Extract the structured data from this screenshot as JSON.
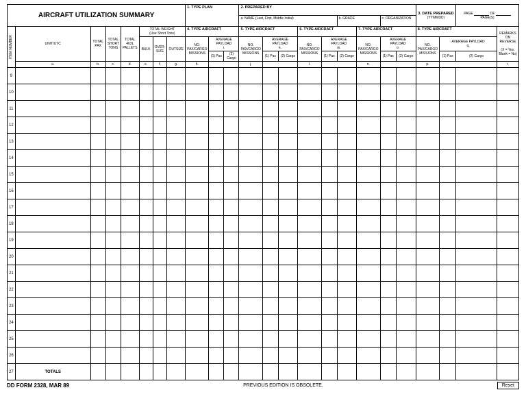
{
  "title": "AIRCRAFT UTILIZATION SUMMARY",
  "top": {
    "type_plan": "1. TYPE PLAN",
    "prepared_by": "2. PREPARED BY",
    "name": "a. NAME (Last, First, Middle Initial)",
    "grade": "b. GRADE",
    "org": "c. ORGANIZATION",
    "date_prepared": "3. DATE PREPARED",
    "date_fmt": "(YYMMDD)",
    "page": "PAGE",
    "of": "OF",
    "pages": "PAGE(S)"
  },
  "cols": {
    "item_number": "ITEM NUMBER",
    "unit_utc": "UNIT/UTC",
    "unit_utc_sub": "a.",
    "total_pax": "TOTAL PAX",
    "total_pax_sub": "b.",
    "total_short_tons": "TOTAL SHORT TONS",
    "total_short_tons_sub": "c.",
    "total_pallets": "TOTAL 463L PALLETS",
    "total_pallets_sub": "d.",
    "total_weight": "TOTAL WEIGHT",
    "total_weight_note": "(Use Short Tons)",
    "bulk": "BULK",
    "bulk_sub": "e.",
    "oversize": "OVER-SIZE",
    "oversize_sub": "f.",
    "outsize": "OUTSIZE",
    "outsize_sub": "g.",
    "aircraft4": "4. TYPE AIRCRAFT",
    "aircraft5": "5. TYPE AIRCRAFT",
    "aircraft6": "6. TYPE AIRCRAFT",
    "aircraft7": "7. TYPE AIRCRAFT",
    "aircraft8": "8. TYPE AIRCRAFT",
    "no_pax_cargo": "NO. PAX/CARGO MISSIONS",
    "avg_payload": "AVERAGE PAYLOAD",
    "pax": "(1) Pax",
    "cargo": "(2) Cargo",
    "sub_h": "h.",
    "sub_i": "i.",
    "sub_j": "j.",
    "sub_k": "k.",
    "sub_l": "l.",
    "sub_m": "m.",
    "sub_n": "n.",
    "sub_o": "o.",
    "sub_p": "p.",
    "sub_q": "q.",
    "remarks": "REMARKS ON REVERSE",
    "remarks_note": "(X = Yes, Blank = No)",
    "remarks_sub": "r."
  },
  "rows": [
    "9",
    "10",
    "11",
    "12",
    "13",
    "14",
    "15",
    "16",
    "17",
    "18",
    "19",
    "20",
    "21",
    "22",
    "23",
    "24",
    "25",
    "26"
  ],
  "totals_row": "27",
  "totals_label": "TOTALS",
  "footer": {
    "form": "DD FORM 2328, MAR 89",
    "note": "PREVIOUS EDITION IS OBSOLETE.",
    "reset": "Reset"
  },
  "style": {
    "border_color": "#000000",
    "bg": "#ffffff"
  }
}
